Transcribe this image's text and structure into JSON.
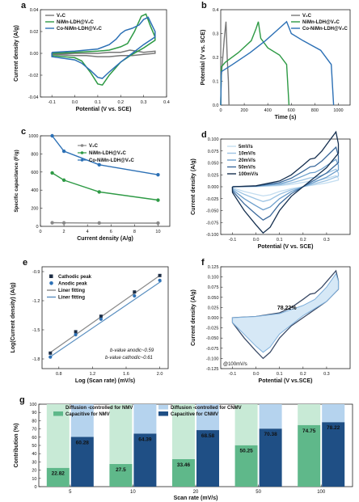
{
  "chart_data": [
    {
      "panel_letter": "a",
      "type": "line",
      "xlabel": "Potential (V vs. SCE)",
      "ylabel": "Current density (A/g)",
      "xlim": [
        -0.15,
        0.4
      ],
      "ylim": [
        -0.04,
        0.04
      ],
      "xticks": [
        "-0.1",
        "0.0",
        "0.1",
        "0.2",
        "0.3",
        "0.4"
      ],
      "yticks": [
        "-0.04",
        "-0.02",
        "0.00",
        "0.02",
        "0.04"
      ],
      "legend_position": "top-left",
      "series": [
        {
          "name": "V₂C",
          "color": "#777777",
          "upper": [
            [
              -0.1,
              -0.001
            ],
            [
              0.0,
              0.0
            ],
            [
              0.1,
              0.0
            ],
            [
              0.15,
              0.001
            ],
            [
              0.2,
              0.001
            ],
            [
              0.24,
              0.003
            ],
            [
              0.27,
              0.002
            ],
            [
              0.3,
              0.001
            ],
            [
              0.35,
              0.002
            ]
          ],
          "lower": [
            [
              0.35,
              0.0
            ],
            [
              0.3,
              -0.001
            ],
            [
              0.25,
              -0.002
            ],
            [
              0.2,
              -0.002
            ],
            [
              0.15,
              -0.003
            ],
            [
              0.1,
              -0.003
            ],
            [
              0.05,
              -0.002
            ],
            [
              0.0,
              -0.002
            ],
            [
              -0.1,
              -0.001
            ]
          ]
        },
        {
          "name": "NiMn-LDH@V₂C",
          "color": "#2e9a45",
          "upper": [
            [
              -0.1,
              0.0
            ],
            [
              0.0,
              0.001
            ],
            [
              0.1,
              0.002
            ],
            [
              0.15,
              0.003
            ],
            [
              0.2,
              0.006
            ],
            [
              0.23,
              0.009
            ],
            [
              0.26,
              0.02
            ],
            [
              0.29,
              0.034
            ],
            [
              0.31,
              0.036
            ],
            [
              0.33,
              0.025
            ],
            [
              0.35,
              0.015
            ]
          ],
          "lower": [
            [
              0.35,
              0.012
            ],
            [
              0.3,
              0.005
            ],
            [
              0.25,
              -0.001
            ],
            [
              0.2,
              -0.008
            ],
            [
              0.15,
              -0.02
            ],
            [
              0.12,
              -0.029
            ],
            [
              0.1,
              -0.028
            ],
            [
              0.07,
              -0.018
            ],
            [
              0.03,
              -0.007
            ],
            [
              0.0,
              -0.004
            ],
            [
              -0.1,
              -0.002
            ]
          ]
        },
        {
          "name": "Co-NiMn-LDH@V₂C",
          "color": "#2c70b5",
          "upper": [
            [
              -0.1,
              0.001
            ],
            [
              0.0,
              0.002
            ],
            [
              0.1,
              0.004
            ],
            [
              0.15,
              0.008
            ],
            [
              0.18,
              0.013
            ],
            [
              0.2,
              0.018
            ],
            [
              0.22,
              0.021
            ],
            [
              0.25,
              0.023
            ],
            [
              0.28,
              0.026
            ],
            [
              0.3,
              0.031
            ],
            [
              0.32,
              0.033
            ],
            [
              0.35,
              0.02
            ]
          ],
          "lower": [
            [
              0.35,
              0.015
            ],
            [
              0.3,
              0.008
            ],
            [
              0.25,
              0.0
            ],
            [
              0.2,
              -0.008
            ],
            [
              0.15,
              -0.017
            ],
            [
              0.12,
              -0.023
            ],
            [
              0.1,
              -0.022
            ],
            [
              0.07,
              -0.016
            ],
            [
              0.03,
              -0.009
            ],
            [
              0.0,
              -0.006
            ],
            [
              -0.1,
              -0.003
            ]
          ]
        }
      ]
    },
    {
      "panel_letter": "b",
      "type": "line",
      "xlabel": "Time (s)",
      "ylabel": "Potential (V vs. SCE)",
      "xlim": [
        0,
        1100
      ],
      "ylim": [
        0,
        0.4
      ],
      "xticks": [
        "0",
        "200",
        "400",
        "600",
        "800",
        "1000"
      ],
      "yticks": [
        "0.0",
        "0.1",
        "0.2",
        "0.3",
        "0.4"
      ],
      "legend_position": "top-right",
      "series": [
        {
          "name": "V₂C",
          "color": "#777777",
          "points": [
            [
              0,
              0.0
            ],
            [
              5,
              0.12
            ],
            [
              30,
              0.28
            ],
            [
              45,
              0.35
            ],
            [
              55,
              0.2
            ],
            [
              65,
              0.1
            ],
            [
              70,
              0.0
            ]
          ]
        },
        {
          "name": "NiMn-LDH@V₂C",
          "color": "#2e9a45",
          "points": [
            [
              0,
              0.0
            ],
            [
              5,
              0.16
            ],
            [
              40,
              0.18
            ],
            [
              150,
              0.22
            ],
            [
              260,
              0.27
            ],
            [
              300,
              0.32
            ],
            [
              320,
              0.35
            ],
            [
              340,
              0.28
            ],
            [
              400,
              0.24
            ],
            [
              500,
              0.21
            ],
            [
              560,
              0.17
            ],
            [
              580,
              0.0
            ]
          ]
        },
        {
          "name": "Co-NiMn-LDH@V₂C",
          "color": "#2c70b5",
          "points": [
            [
              0,
              0.0
            ],
            [
              5,
              0.14
            ],
            [
              100,
              0.17
            ],
            [
              250,
              0.22
            ],
            [
              380,
              0.27
            ],
            [
              470,
              0.31
            ],
            [
              560,
              0.35
            ],
            [
              600,
              0.3
            ],
            [
              700,
              0.27
            ],
            [
              850,
              0.23
            ],
            [
              940,
              0.17
            ],
            [
              960,
              0.0
            ]
          ]
        }
      ]
    },
    {
      "panel_letter": "c",
      "type": "line",
      "xlabel": "Current density (A/g)",
      "ylabel": "Specific capacitance (F/g)",
      "xlim": [
        0,
        11
      ],
      "ylim": [
        0,
        1000
      ],
      "xticks": [
        "0",
        "2",
        "4",
        "6",
        "8",
        "10"
      ],
      "yticks": [
        "0",
        "200",
        "400",
        "600",
        "800",
        "1000"
      ],
      "legend_position": "top-right",
      "x": [
        1,
        2,
        5,
        10
      ],
      "series": [
        {
          "name": "V₂C",
          "color": "#888888",
          "values": [
            40,
            38,
            37,
            36
          ]
        },
        {
          "name": "NiMn-LDH@V₂C",
          "color": "#2e9a45",
          "values": [
            590,
            510,
            380,
            290
          ]
        },
        {
          "name": "Co-NiMn-LDH@V₂C",
          "color": "#2c70b5",
          "values": [
            1000,
            830,
            680,
            570
          ]
        }
      ]
    },
    {
      "panel_letter": "d",
      "type": "line",
      "xlabel": "Potential (V vs. SCE)",
      "ylabel": "Current density (A/g)",
      "xlim": [
        -0.15,
        0.4
      ],
      "ylim": [
        -0.1,
        0.1
      ],
      "xticks": [
        "-0.1",
        "0.0",
        "0.1",
        "0.2",
        "0.3"
      ],
      "yticks": [
        "-0.100",
        "-0.075",
        "-0.050",
        "-0.025",
        "0.000",
        "0.025",
        "0.050",
        "0.075",
        "0.100"
      ],
      "legend_position": "top-left",
      "series": [
        {
          "name": "5mV/s",
          "color": "#c3ddf0",
          "scale": 0.2
        },
        {
          "name": "10mV/s",
          "color": "#9cc3e3",
          "scale": 0.32
        },
        {
          "name": "20mV/s",
          "color": "#6d9fcc",
          "scale": 0.5
        },
        {
          "name": "50mV/s",
          "color": "#3c6a9c",
          "scale": 0.72
        },
        {
          "name": "100mV/s",
          "color": "#152f4f",
          "scale": 1.0
        }
      ],
      "base_upper": [
        [
          -0.1,
          0.0
        ],
        [
          0.0,
          0.002
        ],
        [
          0.1,
          0.012
        ],
        [
          0.15,
          0.025
        ],
        [
          0.2,
          0.045
        ],
        [
          0.23,
          0.058
        ],
        [
          0.25,
          0.06
        ],
        [
          0.28,
          0.075
        ],
        [
          0.31,
          0.095
        ],
        [
          0.34,
          0.115
        ],
        [
          0.35,
          0.09
        ]
      ],
      "base_lower": [
        [
          0.35,
          0.07
        ],
        [
          0.3,
          0.04
        ],
        [
          0.25,
          0.02
        ],
        [
          0.2,
          0.0
        ],
        [
          0.15,
          -0.02
        ],
        [
          0.1,
          -0.05
        ],
        [
          0.06,
          -0.085
        ],
        [
          0.03,
          -0.097
        ],
        [
          0.0,
          -0.08
        ],
        [
          -0.05,
          -0.05
        ],
        [
          -0.1,
          -0.012
        ]
      ]
    },
    {
      "panel_letter": "e",
      "type": "scatter",
      "xlabel": "Log (Scan rate) (mV/s)",
      "ylabel": "Log(Current density) (A/g)",
      "xlim": [
        0.6,
        2.1
      ],
      "ylim": [
        -1.9,
        -0.85
      ],
      "xticks": [
        "0.8",
        "1.2",
        "1.6",
        "2.0"
      ],
      "yticks": [
        "-1.8",
        "-1.5",
        "-1.2",
        "-0.9"
      ],
      "legend_position": "top-left",
      "x": [
        0.699,
        1.0,
        1.301,
        1.699,
        2.0
      ],
      "series": [
        {
          "name": "Cathodic peak",
          "color": "#1e2e45",
          "marker": "square",
          "values": [
            -1.74,
            -1.52,
            -1.36,
            -1.11,
            -0.94
          ]
        },
        {
          "name": "Anodic peak",
          "color": "#2c70b5",
          "marker": "circle",
          "values": [
            -1.78,
            -1.55,
            -1.39,
            -1.15,
            -0.99
          ]
        },
        {
          "name": "Liner fitting",
          "color": "#888888",
          "fit_of": "Cathodic peak",
          "slope": 0.61,
          "intercept": -2.16
        },
        {
          "name": "Liner fitting",
          "color": "#5a8fc0",
          "fit_of": "Anodic peak",
          "slope": 0.59,
          "intercept": -2.19
        }
      ],
      "annotations": [
        "b-value anodic~0.59",
        "b-value cathodic~0.61"
      ]
    },
    {
      "panel_letter": "f",
      "type": "area",
      "xlabel": "Potential (V vs.SCE)",
      "ylabel": "Current density (A/g)",
      "xlim": [
        -0.15,
        0.4
      ],
      "ylim": [
        -0.125,
        0.125
      ],
      "xticks": [
        "-0.1",
        "0.0",
        "0.1",
        "0.2",
        "0.3"
      ],
      "yticks": [
        "-0.125",
        "-0.100",
        "-0.075",
        "-0.050",
        "-0.025",
        "0.000",
        "0.025",
        "0.050",
        "0.075",
        "0.100",
        "0.125"
      ],
      "annotations": [
        "78.22%",
        "@100mV/s"
      ],
      "outer_upper": [
        [
          -0.1,
          0.0
        ],
        [
          0.0,
          0.003
        ],
        [
          0.1,
          0.012
        ],
        [
          0.15,
          0.025
        ],
        [
          0.2,
          0.045
        ],
        [
          0.23,
          0.058
        ],
        [
          0.25,
          0.06
        ],
        [
          0.28,
          0.075
        ],
        [
          0.31,
          0.095
        ],
        [
          0.34,
          0.115
        ],
        [
          0.35,
          0.09
        ]
      ],
      "outer_lower": [
        [
          0.35,
          0.07
        ],
        [
          0.3,
          0.04
        ],
        [
          0.25,
          0.02
        ],
        [
          0.2,
          0.0
        ],
        [
          0.15,
          -0.02
        ],
        [
          0.1,
          -0.05
        ],
        [
          0.06,
          -0.085
        ],
        [
          0.03,
          -0.1
        ],
        [
          0.0,
          -0.082
        ],
        [
          -0.05,
          -0.05
        ],
        [
          -0.1,
          -0.012
        ]
      ],
      "inner_upper": [
        [
          -0.1,
          0.0
        ],
        [
          0.0,
          0.003
        ],
        [
          0.1,
          0.01
        ],
        [
          0.2,
          0.03
        ],
        [
          0.25,
          0.045
        ],
        [
          0.3,
          0.075
        ],
        [
          0.34,
          0.108
        ],
        [
          0.35,
          0.09
        ]
      ],
      "inner_lower": [
        [
          0.35,
          0.07
        ],
        [
          0.3,
          0.04
        ],
        [
          0.2,
          0.005
        ],
        [
          0.1,
          -0.04
        ],
        [
          0.06,
          -0.072
        ],
        [
          0.03,
          -0.085
        ],
        [
          0.0,
          -0.07
        ],
        [
          -0.1,
          -0.012
        ]
      ]
    },
    {
      "panel_letter": "g",
      "type": "bar",
      "xlabel": "Scan rate (mV/s)",
      "ylabel": "Contribution (%)",
      "ylim": [
        0,
        100
      ],
      "yticks": [
        "0",
        "10",
        "20",
        "30",
        "40",
        "50",
        "60",
        "70",
        "80",
        "90",
        "100"
      ],
      "categories": [
        "5",
        "10",
        "20",
        "50",
        "100"
      ],
      "legend_position": "top",
      "series": [
        {
          "name": "Capacitive for NMV",
          "color": "#5fb88a",
          "values": [
            22.82,
            27.5,
            33.46,
            50.25,
            74.75
          ]
        },
        {
          "name": "Diffusion -controlled for NMV",
          "color": "#c8ead6",
          "values": [
            77.18,
            72.5,
            66.54,
            49.75,
            25.25
          ]
        },
        {
          "name": "Capacitive for CNMV",
          "color": "#1f4f85",
          "values": [
            60.28,
            64.39,
            68.58,
            70.38,
            78.22
          ]
        },
        {
          "name": "Diffusion -controlled for CNMV",
          "color": "#b5d3ee",
          "values": [
            39.72,
            35.61,
            31.42,
            29.62,
            21.78
          ]
        }
      ],
      "value_labels": {
        "nmv": [
          "22.82",
          "27.5",
          "33.46",
          "50.25",
          "74.75"
        ],
        "cnmv": [
          "60.28",
          "64.39",
          "68.58",
          "70.38",
          "78.22"
        ]
      }
    }
  ]
}
